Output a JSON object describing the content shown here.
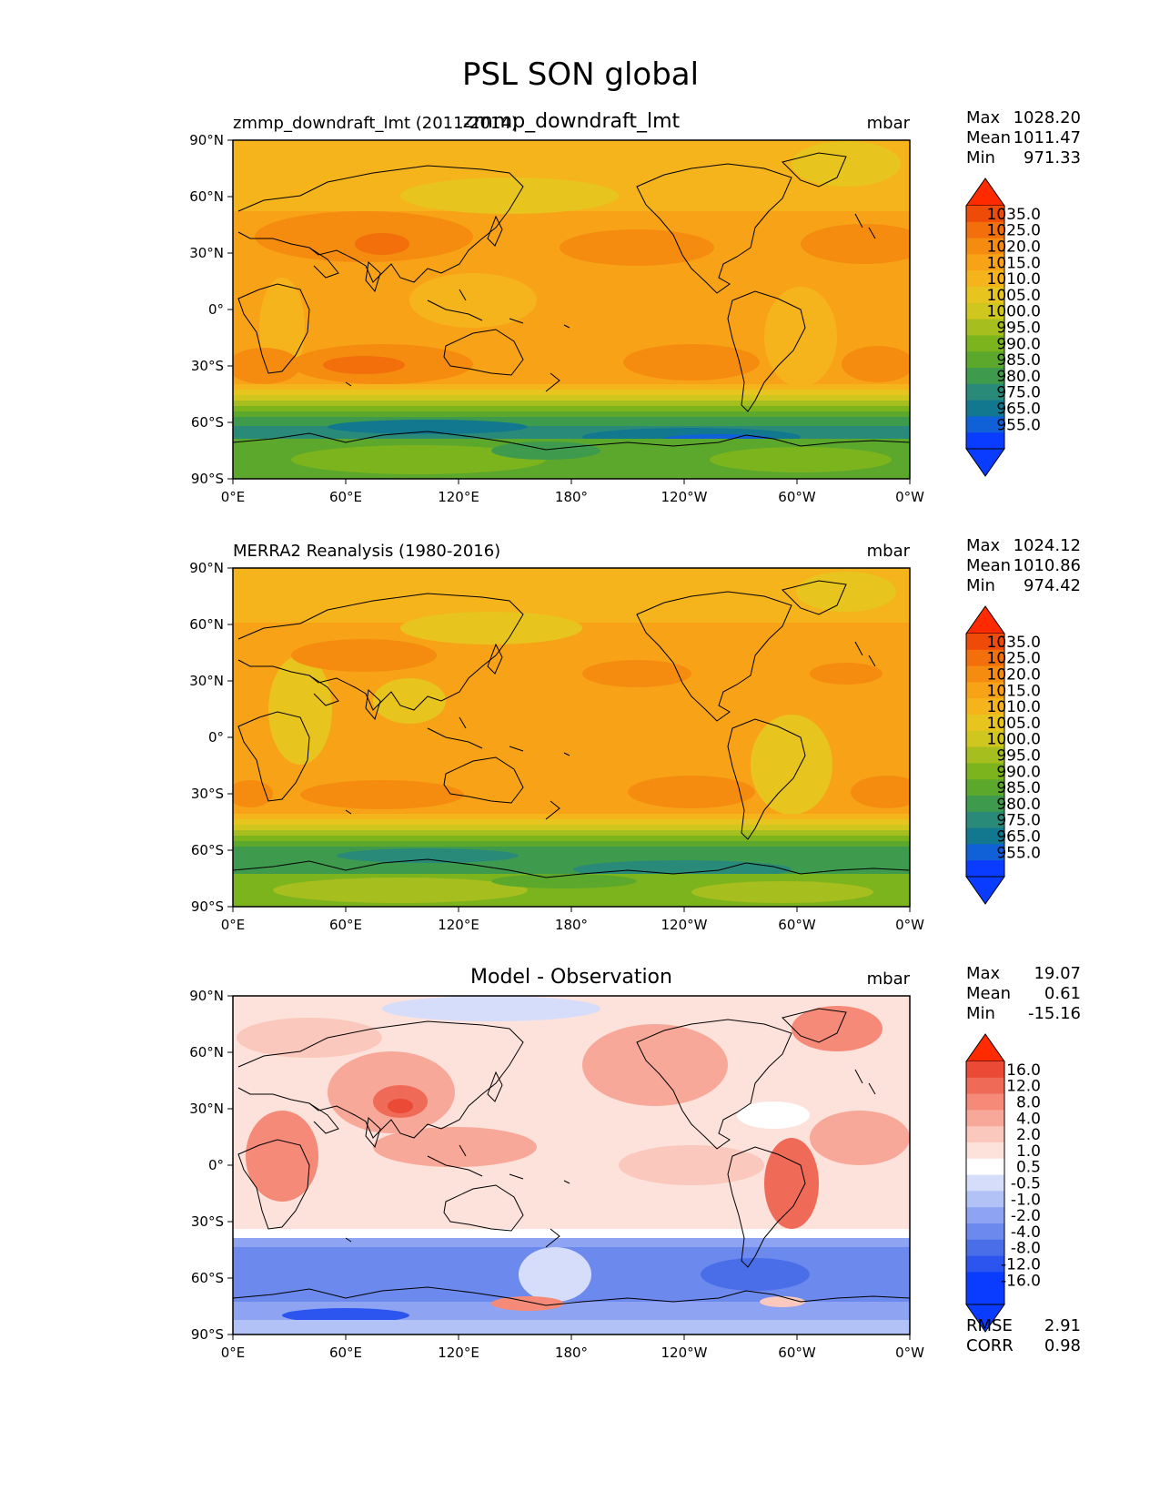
{
  "title": "PSL SON global",
  "lon_ticks": [
    "0°E",
    "60°E",
    "120°E",
    "180°",
    "120°W",
    "60°W",
    "0°W"
  ],
  "lat_ticks": [
    "90°N",
    "60°N",
    "30°N",
    "0°",
    "30°S",
    "60°S",
    "90°S"
  ],
  "colors": {
    "abs_cmap": [
      "#0a3cff",
      "#1060d8",
      "#127890",
      "#2a8a7a",
      "#3e9a4c",
      "#5ba82c",
      "#7cb41e",
      "#a6be1e",
      "#cfc61e",
      "#e8c41e",
      "#f5b41c",
      "#f8a317",
      "#f58c10",
      "#f26f0b",
      "#ee4a08",
      "#ff2a00"
    ],
    "diff_cmap": [
      "#0a3cff",
      "#2b55ee",
      "#4a6ee8",
      "#6c89ee",
      "#8ea4f2",
      "#b2c1f6",
      "#d5ddfa",
      "#ffffff",
      "#fde2dc",
      "#fbc8bd",
      "#f8a898",
      "#f48a77",
      "#f06b57",
      "#ea4a36",
      "#ff2a00"
    ]
  },
  "panels": [
    {
      "left_label": "zmmp_downdraft_lmt (2011-2014)",
      "center_label": "zmmp_downdraft_lmt",
      "units": "mbar",
      "stats": [
        {
          "label": "Max",
          "value": "1028.20"
        },
        {
          "label": "Mean",
          "value": "1011.47"
        },
        {
          "label": "Min",
          "value": "971.33"
        }
      ],
      "colorbar_labels": [
        "1035.0",
        "1025.0",
        "1020.0",
        "1015.0",
        "1010.0",
        "1005.0",
        "1000.0",
        "995.0",
        "990.0",
        "985.0",
        "980.0",
        "975.0",
        "965.0",
        "955.0"
      ]
    },
    {
      "left_label": "MERRA2 Reanalysis (1980-2016)",
      "center_label": "",
      "units": "mbar",
      "stats": [
        {
          "label": "Max",
          "value": "1024.12"
        },
        {
          "label": "Mean",
          "value": "1010.86"
        },
        {
          "label": "Min",
          "value": "974.42"
        }
      ],
      "colorbar_labels": [
        "1035.0",
        "1025.0",
        "1020.0",
        "1015.0",
        "1010.0",
        "1005.0",
        "1000.0",
        "995.0",
        "990.0",
        "985.0",
        "980.0",
        "975.0",
        "965.0",
        "955.0"
      ]
    },
    {
      "left_label": "",
      "center_label": "Model - Observation",
      "units": "mbar",
      "stats": [
        {
          "label": "Max",
          "value": "19.07"
        },
        {
          "label": "Mean",
          "value": "0.61"
        },
        {
          "label": "Min",
          "value": "-15.16"
        }
      ],
      "colorbar_labels": [
        "16.0",
        "12.0",
        "8.0",
        "4.0",
        "2.0",
        "1.0",
        "0.5",
        "-0.5",
        "-1.0",
        "-2.0",
        "-4.0",
        "-8.0",
        "-12.0",
        "-16.0"
      ],
      "extra_stats": [
        {
          "label": "RMSE",
          "value": "2.91"
        },
        {
          "label": "CORR",
          "value": "0.98"
        }
      ]
    }
  ],
  "chart_data": [
    {
      "type": "heatmap",
      "title": "zmmp_downdraft_lmt",
      "subtitle": "zmmp_downdraft_lmt (2011-2014)",
      "variable": "PSL",
      "units": "mbar",
      "xlim": [
        0,
        360
      ],
      "ylim": [
        -90,
        90
      ],
      "x": [
        0,
        60,
        120,
        180,
        240,
        300,
        360
      ],
      "y_lat": [
        90,
        60,
        30,
        0,
        -30,
        -60,
        -90
      ],
      "levels": [
        955,
        965,
        975,
        980,
        985,
        990,
        995,
        1000,
        1005,
        1010,
        1015,
        1020,
        1025,
        1035
      ],
      "max": 1028.2,
      "mean": 1011.47,
      "min": 971.33
    },
    {
      "type": "heatmap",
      "title": "MERRA2 Reanalysis (1980-2016)",
      "variable": "PSL",
      "units": "mbar",
      "xlim": [
        0,
        360
      ],
      "ylim": [
        -90,
        90
      ],
      "levels": [
        955,
        965,
        975,
        980,
        985,
        990,
        995,
        1000,
        1005,
        1010,
        1015,
        1020,
        1025,
        1035
      ],
      "max": 1024.12,
      "mean": 1010.86,
      "min": 974.42
    },
    {
      "type": "heatmap",
      "title": "Model - Observation",
      "variable": "PSL",
      "units": "mbar",
      "xlim": [
        0,
        360
      ],
      "ylim": [
        -90,
        90
      ],
      "levels": [
        -16,
        -12,
        -8,
        -4,
        -2,
        -1,
        -0.5,
        0.5,
        1,
        2,
        4,
        8,
        12,
        16
      ],
      "max": 19.07,
      "mean": 0.61,
      "min": -15.16,
      "rmse": 2.91,
      "corr": 0.98
    }
  ]
}
